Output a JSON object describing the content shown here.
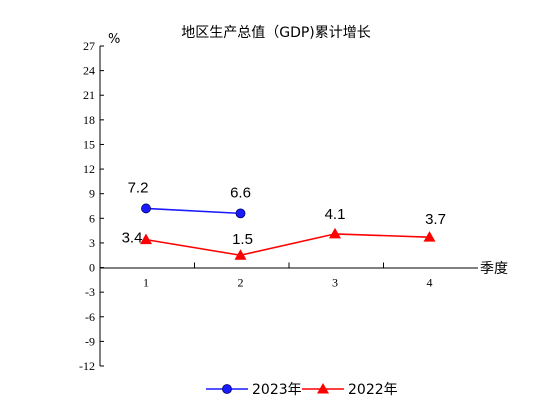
{
  "chart_data": {
    "type": "line",
    "title": "地区生产总值（GDP)累计增长",
    "ylabel": "%",
    "xlabel": "季度",
    "categories": [
      "1",
      "2",
      "3",
      "4"
    ],
    "yticks": [
      27,
      24,
      21,
      18,
      15,
      12,
      9,
      6,
      3,
      0,
      -3,
      -6,
      -9,
      -12
    ],
    "ylim": [
      -12,
      27
    ],
    "grid": false,
    "legend_position": "bottom",
    "series": [
      {
        "name": "2023年",
        "values": [
          7.2,
          6.6,
          null,
          null
        ],
        "labels": [
          "7.2",
          "6.6",
          null,
          null
        ],
        "color": "#1a1aff",
        "marker": "circle"
      },
      {
        "name": "2022年",
        "values": [
          3.4,
          1.5,
          4.1,
          3.7
        ],
        "labels": [
          "3.4",
          "1.5",
          "4.1",
          "3.7"
        ],
        "color": "#ff0000",
        "marker": "triangle"
      }
    ]
  }
}
